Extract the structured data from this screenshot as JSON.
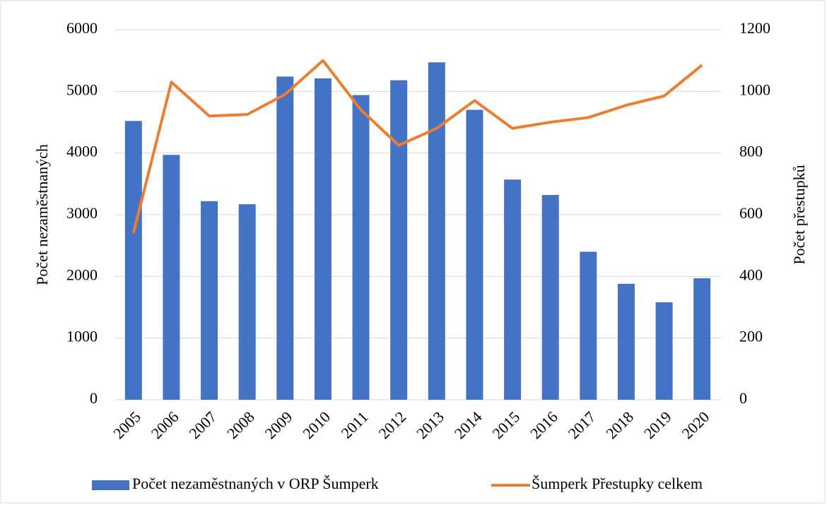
{
  "chart_data": {
    "type": "bar-line",
    "categories": [
      "2005",
      "2006",
      "2007",
      "2008",
      "2009",
      "2010",
      "2011",
      "2012",
      "2013",
      "2014",
      "2015",
      "2016",
      "2017",
      "2018",
      "2019",
      "2020"
    ],
    "series": [
      {
        "name": "Počet nezaměstnaných v ORP Šumperk",
        "type": "bar",
        "axis": "y",
        "color": "#4472c4",
        "values": [
          4520,
          3970,
          3220,
          3170,
          5240,
          5210,
          4940,
          5180,
          5470,
          4700,
          3570,
          3320,
          2400,
          1880,
          1580,
          1970
        ]
      },
      {
        "name": "Šumperk Přestupky celkem",
        "type": "line",
        "axis": "y2",
        "color": "#ed7d31",
        "values": [
          540,
          1030,
          920,
          925,
          990,
          1100,
          940,
          825,
          880,
          970,
          880,
          900,
          915,
          955,
          985,
          1085
        ]
      }
    ],
    "ylabel": "Počet nezaměstnaných",
    "y2label": "Počet přestupků",
    "ylim": [
      0,
      6000
    ],
    "yticks": [
      0,
      1000,
      2000,
      3000,
      4000,
      5000,
      6000
    ],
    "y2lim": [
      0,
      1200
    ],
    "y2ticks": [
      0,
      200,
      400,
      600,
      800,
      1000,
      1200
    ],
    "grid": true,
    "legend": "bottom"
  }
}
